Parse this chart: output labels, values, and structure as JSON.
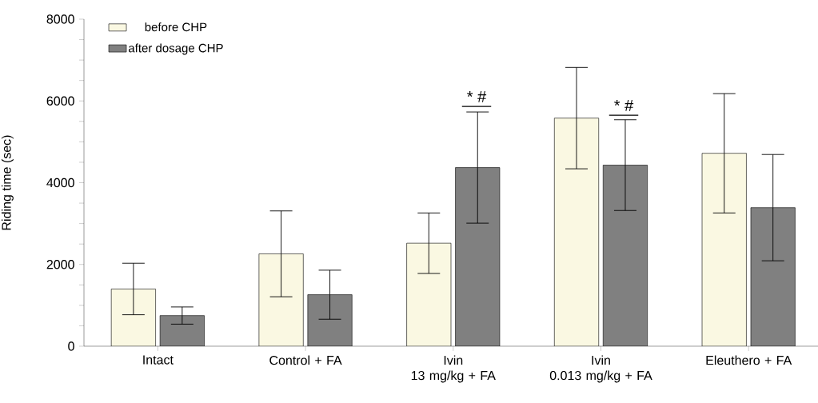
{
  "chart_data": {
    "type": "bar",
    "ylabel": "Riding time (sec)",
    "categories": [
      "Intact",
      "Control + FA",
      "Ivin\n13 mg/kg + FA",
      "Ivin\n0.013 mg/kg + FA",
      "Eleuthero + FA"
    ],
    "series": [
      {
        "name": "before CHP",
        "color": "#faf8e2",
        "values": [
          1400,
          2260,
          2520,
          5580,
          4720
        ],
        "errors": [
          630,
          1050,
          740,
          1240,
          1460
        ]
      },
      {
        "name": "after dosage CHP",
        "color": "#808080",
        "values": [
          750,
          1260,
          4370,
          4430,
          3390
        ],
        "errors": [
          210,
          600,
          1360,
          1110,
          1300
        ]
      }
    ],
    "ylim": [
      0,
      8000
    ],
    "yticks": [
      0,
      {
        "value": 500,
        "label": null
      },
      {
        "value": 1000,
        "label": null
      },
      {
        "value": 1500,
        "label": null
      },
      2000,
      {
        "value": 2500,
        "label": null
      },
      {
        "value": 3000,
        "label": null
      },
      {
        "value": 3500,
        "label": null
      },
      4000,
      {
        "value": 4500,
        "label": null
      },
      {
        "value": 5000,
        "label": null
      },
      {
        "value": 5500,
        "label": null
      },
      6000,
      {
        "value": 6500,
        "label": null
      },
      {
        "value": 7000,
        "label": null
      },
      {
        "value": 7500,
        "label": null
      },
      8000
    ],
    "annotations": [
      "* #",
      "* #"
    ],
    "legend": "top left",
    "grid": false
  }
}
